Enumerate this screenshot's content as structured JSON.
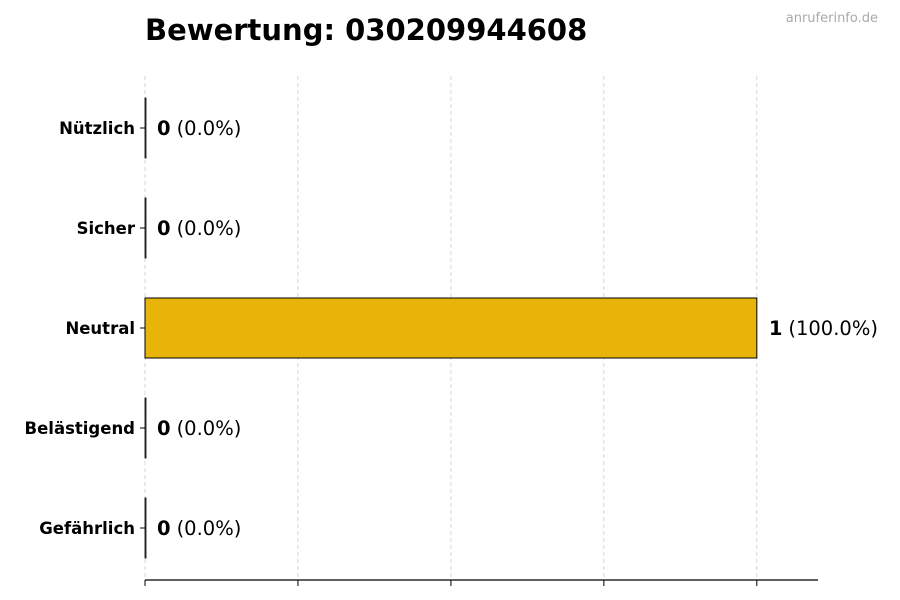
{
  "chart_data": {
    "type": "bar",
    "orientation": "horizontal",
    "title": "Bewertung: 030209944608",
    "watermark": "anruferinfo.de",
    "categories": [
      "Nützlich",
      "Sicher",
      "Neutral",
      "Belästigend",
      "Gefährlich"
    ],
    "values": [
      0,
      0,
      1,
      0,
      0
    ],
    "xlabel": "",
    "ylabel": "",
    "xlim": [
      0,
      1.1
    ],
    "xticks": [
      0,
      0.25,
      0.5,
      0.75,
      1.0
    ],
    "grid": "x-dashed",
    "bar_color": "#e8b407",
    "data_labels": [
      {
        "count": "0",
        "percent": "(0.0%)"
      },
      {
        "count": "0",
        "percent": "(0.0%)"
      },
      {
        "count": "1",
        "percent": "(100.0%)"
      },
      {
        "count": "0",
        "percent": "(0.0%)"
      },
      {
        "count": "0",
        "percent": "(0.0%)"
      }
    ]
  }
}
